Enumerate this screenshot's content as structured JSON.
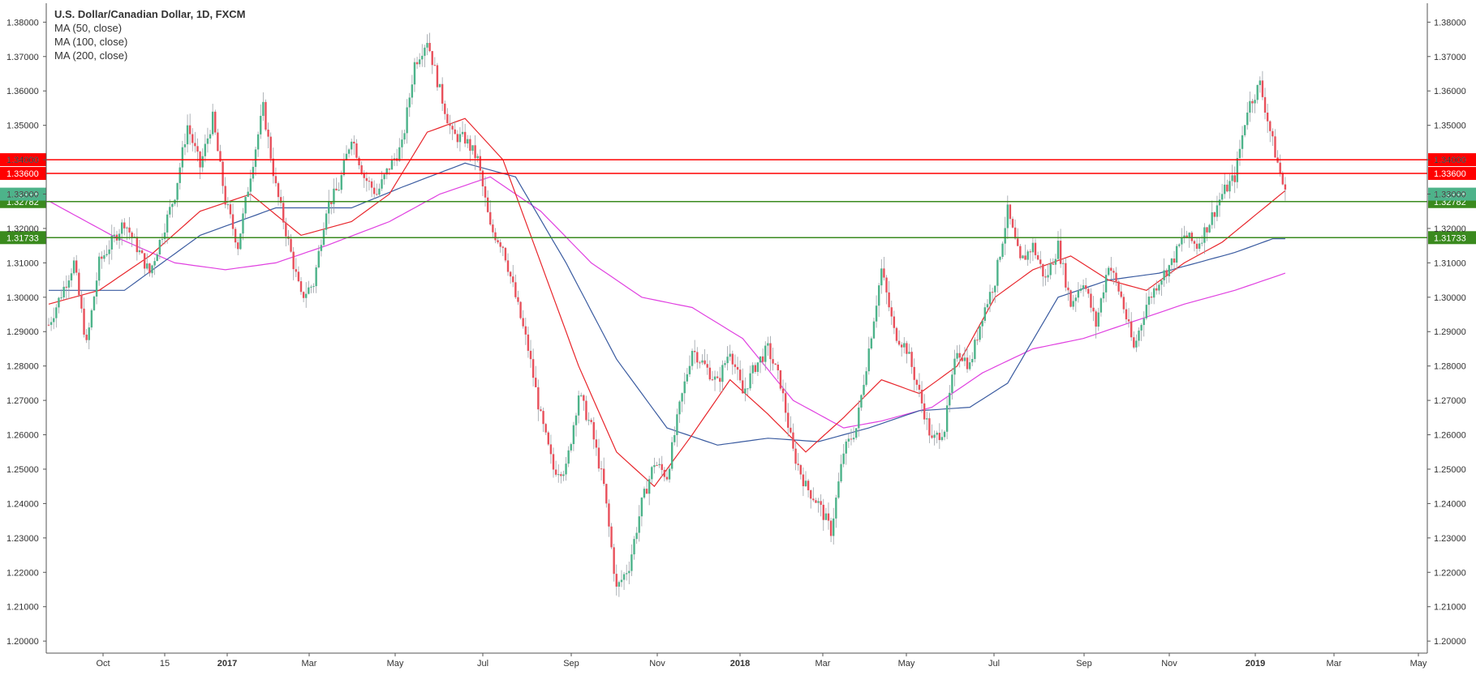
{
  "chart_data": {
    "type": "candlestick",
    "title": "U.S. Dollar/Canadian Dollar, 1D, FXCM",
    "indicators": [
      "MA (50, close)",
      "MA (100, close)",
      "MA (200, close)"
    ],
    "x_tick_labels": [
      "Oct",
      "15",
      "2017",
      "Mar",
      "May",
      "Jul",
      "Sep",
      "Nov",
      "2018",
      "Mar",
      "May",
      "Jul",
      "Sep",
      "Nov",
      "2019",
      "Mar",
      "May"
    ],
    "bold_x_ticks": [
      "2017",
      "2018",
      "2019"
    ],
    "y_tick_labels": [
      "1.38000",
      "1.37000",
      "1.36000",
      "1.35000",
      "1.34000",
      "1.33000",
      "1.32000",
      "1.31000",
      "1.30000",
      "1.29000",
      "1.28000",
      "1.27000",
      "1.26000",
      "1.25000",
      "1.24000",
      "1.23000",
      "1.22000",
      "1.21000",
      "1.20000"
    ],
    "ylim": [
      1.1965,
      1.3855
    ],
    "grid": false,
    "legend_position": "top-left",
    "colors": {
      "up_candle": "#4db38a",
      "down_candle": "#e8505b",
      "ma50": "#e8252b",
      "ma100": "#3a5ba0",
      "ma200": "#e040e0",
      "resistance": "#ff0000",
      "support": "#3a8a1e"
    },
    "horizontal_levels": [
      {
        "value": 1.34,
        "label": "1.34000",
        "kind": "resistance"
      },
      {
        "value": 1.336,
        "label": "1.33600",
        "kind": "resistance"
      },
      {
        "value": 1.32782,
        "label": "1.32782",
        "kind": "support"
      },
      {
        "value": 1.31733,
        "label": "1.31733",
        "kind": "support"
      }
    ],
    "last_price": {
      "value": 1.32998,
      "label": "1.32998"
    },
    "price_path_weekly": [
      [
        0,
        1.292
      ],
      [
        2,
        1.31
      ],
      [
        3,
        1.286
      ],
      [
        4,
        1.31
      ],
      [
        6,
        1.322
      ],
      [
        8,
        1.307
      ],
      [
        10,
        1.33
      ],
      [
        11,
        1.35
      ],
      [
        12,
        1.338
      ],
      [
        13,
        1.352
      ],
      [
        14,
        1.328
      ],
      [
        15,
        1.315
      ],
      [
        16,
        1.336
      ],
      [
        17,
        1.355
      ],
      [
        18,
        1.332
      ],
      [
        19,
        1.316
      ],
      [
        20,
        1.3
      ],
      [
        21,
        1.304
      ],
      [
        22,
        1.326
      ],
      [
        23,
        1.332
      ],
      [
        24,
        1.347
      ],
      [
        25,
        1.335
      ],
      [
        26,
        1.33
      ],
      [
        27,
        1.338
      ],
      [
        28,
        1.344
      ],
      [
        29,
        1.368
      ],
      [
        30,
        1.375
      ],
      [
        31,
        1.36
      ],
      [
        32,
        1.347
      ],
      [
        33,
        1.346
      ],
      [
        34,
        1.34
      ],
      [
        35,
        1.32
      ],
      [
        36,
        1.315
      ],
      [
        37,
        1.3
      ],
      [
        38,
        1.285
      ],
      [
        39,
        1.265
      ],
      [
        40,
        1.25
      ],
      [
        41,
        1.25
      ],
      [
        42,
        1.272
      ],
      [
        43,
        1.262
      ],
      [
        44,
        1.245
      ],
      [
        45,
        1.215
      ],
      [
        46,
        1.222
      ],
      [
        47,
        1.24
      ],
      [
        48,
        1.252
      ],
      [
        49,
        1.248
      ],
      [
        50,
        1.268
      ],
      [
        51,
        1.285
      ],
      [
        52,
        1.28
      ],
      [
        53,
        1.275
      ],
      [
        54,
        1.285
      ],
      [
        55,
        1.272
      ],
      [
        56,
        1.28
      ],
      [
        57,
        1.285
      ],
      [
        58,
        1.275
      ],
      [
        59,
        1.255
      ],
      [
        60,
        1.245
      ],
      [
        61,
        1.24
      ],
      [
        62,
        1.232
      ],
      [
        63,
        1.255
      ],
      [
        64,
        1.262
      ],
      [
        65,
        1.285
      ],
      [
        66,
        1.308
      ],
      [
        67,
        1.29
      ],
      [
        68,
        1.285
      ],
      [
        69,
        1.272
      ],
      [
        70,
        1.258
      ],
      [
        71,
        1.262
      ],
      [
        72,
        1.285
      ],
      [
        73,
        1.28
      ],
      [
        74,
        1.295
      ],
      [
        75,
        1.305
      ],
      [
        76,
        1.325
      ],
      [
        77,
        1.31
      ],
      [
        78,
        1.315
      ],
      [
        79,
        1.305
      ],
      [
        80,
        1.315
      ],
      [
        81,
        1.298
      ],
      [
        82,
        1.305
      ],
      [
        83,
        1.292
      ],
      [
        84,
        1.31
      ],
      [
        85,
        1.3
      ],
      [
        86,
        1.285
      ],
      [
        87,
        1.298
      ],
      [
        88,
        1.305
      ],
      [
        89,
        1.31
      ],
      [
        90,
        1.318
      ],
      [
        91,
        1.315
      ],
      [
        92,
        1.322
      ],
      [
        93,
        1.33
      ],
      [
        94,
        1.335
      ],
      [
        95,
        1.355
      ],
      [
        96,
        1.362
      ],
      [
        97,
        1.345
      ],
      [
        98,
        1.33
      ]
    ],
    "ma50_path": [
      [
        0,
        1.298
      ],
      [
        4,
        1.302
      ],
      [
        8,
        1.312
      ],
      [
        12,
        1.325
      ],
      [
        16,
        1.33
      ],
      [
        20,
        1.318
      ],
      [
        24,
        1.322
      ],
      [
        27,
        1.33
      ],
      [
        30,
        1.348
      ],
      [
        33,
        1.352
      ],
      [
        36,
        1.34
      ],
      [
        39,
        1.31
      ],
      [
        42,
        1.28
      ],
      [
        45,
        1.255
      ],
      [
        48,
        1.245
      ],
      [
        51,
        1.26
      ],
      [
        54,
        1.276
      ],
      [
        57,
        1.266
      ],
      [
        60,
        1.255
      ],
      [
        63,
        1.265
      ],
      [
        66,
        1.276
      ],
      [
        69,
        1.272
      ],
      [
        72,
        1.28
      ],
      [
        75,
        1.3
      ],
      [
        78,
        1.308
      ],
      [
        81,
        1.312
      ],
      [
        84,
        1.305
      ],
      [
        87,
        1.302
      ],
      [
        90,
        1.31
      ],
      [
        93,
        1.316
      ],
      [
        96,
        1.325
      ],
      [
        98,
        1.331
      ]
    ],
    "ma100_path": [
      [
        0,
        1.302
      ],
      [
        6,
        1.302
      ],
      [
        12,
        1.318
      ],
      [
        18,
        1.326
      ],
      [
        24,
        1.326
      ],
      [
        28,
        1.332
      ],
      [
        33,
        1.339
      ],
      [
        37,
        1.335
      ],
      [
        41,
        1.31
      ],
      [
        45,
        1.282
      ],
      [
        49,
        1.262
      ],
      [
        53,
        1.257
      ],
      [
        57,
        1.259
      ],
      [
        61,
        1.258
      ],
      [
        65,
        1.262
      ],
      [
        69,
        1.267
      ],
      [
        73,
        1.268
      ],
      [
        76,
        1.275
      ],
      [
        80,
        1.3
      ],
      [
        84,
        1.305
      ],
      [
        88,
        1.307
      ],
      [
        91,
        1.31
      ],
      [
        94,
        1.313
      ],
      [
        97,
        1.317
      ],
      [
        98,
        1.317
      ]
    ],
    "ma200_path": [
      [
        0,
        1.328
      ],
      [
        5,
        1.318
      ],
      [
        10,
        1.31
      ],
      [
        14,
        1.308
      ],
      [
        18,
        1.31
      ],
      [
        22,
        1.315
      ],
      [
        27,
        1.322
      ],
      [
        31,
        1.33
      ],
      [
        35,
        1.335
      ],
      [
        39,
        1.325
      ],
      [
        43,
        1.31
      ],
      [
        47,
        1.3
      ],
      [
        51,
        1.297
      ],
      [
        55,
        1.288
      ],
      [
        59,
        1.27
      ],
      [
        63,
        1.262
      ],
      [
        66,
        1.264
      ],
      [
        70,
        1.268
      ],
      [
        74,
        1.278
      ],
      [
        78,
        1.285
      ],
      [
        82,
        1.288
      ],
      [
        86,
        1.293
      ],
      [
        90,
        1.298
      ],
      [
        94,
        1.302
      ],
      [
        98,
        1.307
      ]
    ]
  }
}
